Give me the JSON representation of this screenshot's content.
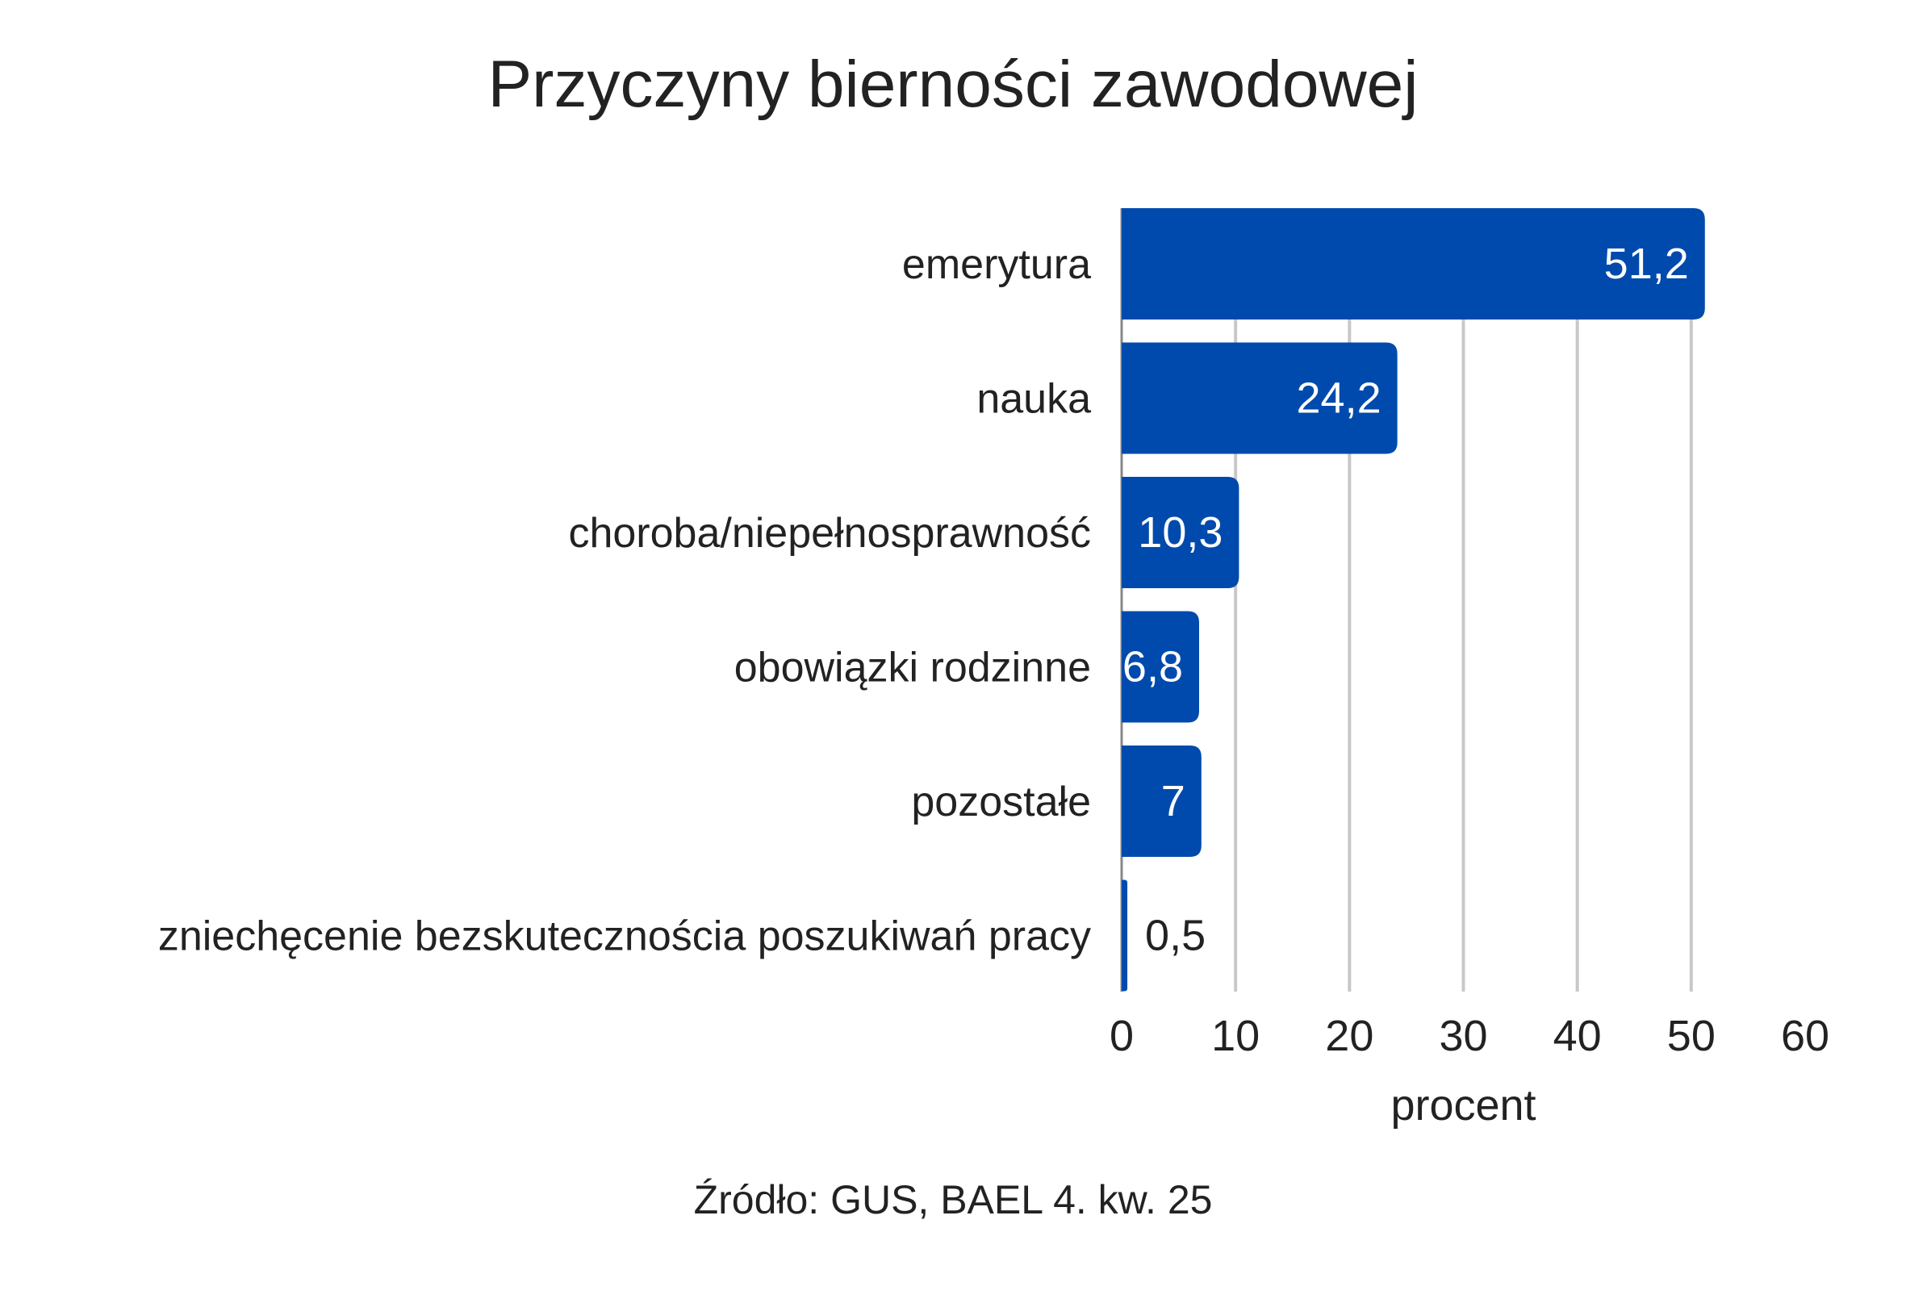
{
  "chart_data": {
    "type": "bar",
    "orientation": "horizontal",
    "title": "Przyczyny bierności zawodowej",
    "categories": [
      "emerytura",
      "nauka",
      "choroba/niepełnosprawność",
      "obowiązki rodzinne",
      "pozostałe",
      "zniechęcenie bezskutecznościa poszukiwań pracy"
    ],
    "values": [
      51.2,
      24.2,
      10.3,
      6.8,
      7,
      0.5
    ],
    "data_labels": [
      "51,2",
      "24,2",
      "10,3",
      "6,8",
      "7",
      "0,5"
    ],
    "xlabel": "procent",
    "ylabel": "",
    "xlim": [
      0,
      60
    ],
    "xticks": [
      "0",
      "10",
      "20",
      "30",
      "40",
      "50",
      "60"
    ],
    "grid": true,
    "bar_color": "#004AAD",
    "source": "Źródło: GUS, BAEL 4. kw. 25"
  }
}
